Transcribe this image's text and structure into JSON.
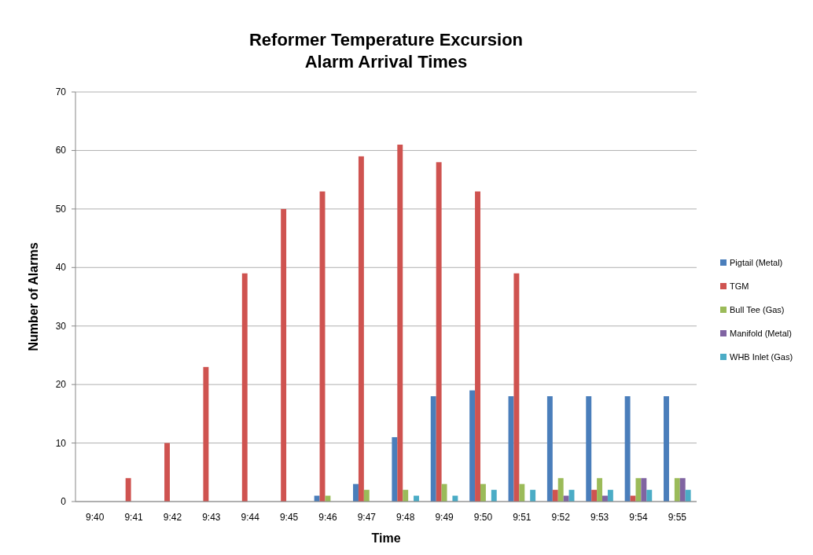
{
  "chart_data": {
    "type": "bar",
    "title": "Reformer Temperature Excursion\nAlarm Arrival Times",
    "xlabel": "Time",
    "ylabel": "Number of Alarms",
    "categories": [
      "9:40",
      "9:41",
      "9:42",
      "9:43",
      "9:44",
      "9:45",
      "9:46",
      "9:47",
      "9:48",
      "9:49",
      "9:50",
      "9:51",
      "9:52",
      "9:53",
      "9:54",
      "9:55"
    ],
    "series": [
      {
        "name": "Pigtail (Metal)",
        "color": "#4a7ebb",
        "values": [
          0,
          0,
          0,
          0,
          0,
          0,
          1,
          3,
          11,
          18,
          19,
          18,
          18,
          18,
          18,
          18
        ]
      },
      {
        "name": "TGM",
        "color": "#cf5350",
        "values": [
          0,
          4,
          10,
          23,
          39,
          50,
          53,
          59,
          61,
          58,
          53,
          39,
          2,
          2,
          1,
          0
        ]
      },
      {
        "name": "Bull Tee (Gas)",
        "color": "#9bbb59",
        "values": [
          0,
          0,
          0,
          0,
          0,
          0,
          1,
          2,
          2,
          3,
          3,
          3,
          4,
          4,
          4,
          4
        ]
      },
      {
        "name": "Manifold (Metal)",
        "color": "#8064a2",
        "values": [
          0,
          0,
          0,
          0,
          0,
          0,
          0,
          0,
          0,
          0,
          0,
          0,
          1,
          1,
          4,
          4
        ]
      },
      {
        "name": "WHB Inlet (Gas)",
        "color": "#4bacc6",
        "values": [
          0,
          0,
          0,
          0,
          0,
          0,
          0,
          0,
          1,
          1,
          2,
          2,
          2,
          2,
          2,
          2
        ]
      }
    ],
    "ylim": [
      0,
      70
    ],
    "yticks": [
      0,
      10,
      20,
      30,
      40,
      50,
      60,
      70
    ],
    "grid": "y",
    "legend": "right"
  }
}
